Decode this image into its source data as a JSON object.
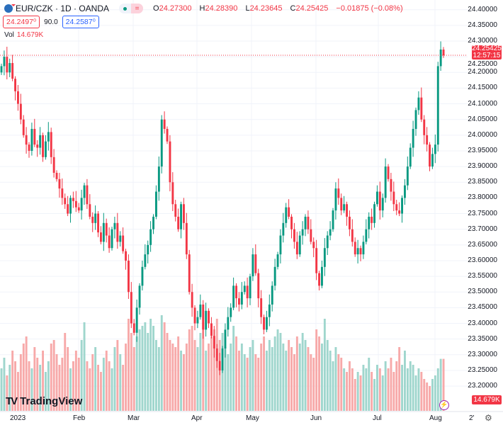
{
  "header": {
    "symbol": "EUR/CZK · 1D · OANDA",
    "open_label": "O",
    "open": "24.27300",
    "high_label": "H",
    "high": "24.28390",
    "low_label": "L",
    "low": "24.23645",
    "close_label": "C",
    "close": "24.25425",
    "change": "−0.01875 (−0.08%)",
    "pill_eq": "="
  },
  "quote": {
    "bid": "24.2497⁰",
    "spread": "90.0",
    "ask": "24.2587⁰"
  },
  "volume": {
    "label": "Vol",
    "value": "14.679K"
  },
  "price_tag": {
    "price": "24.25425",
    "countdown": "12:57:15"
  },
  "price_axis": [
    "24.40000",
    "24.35000",
    "24.30000",
    "24.25000",
    "24.20000",
    "24.15000",
    "24.10000",
    "24.05000",
    "24.00000",
    "23.95000",
    "23.90000",
    "23.85000",
    "23.80000",
    "23.75000",
    "23.70000",
    "23.65000",
    "23.60000",
    "23.55000",
    "23.50000",
    "23.45000",
    "23.40000",
    "23.35000",
    "23.30000",
    "23.25000",
    "23.20000"
  ],
  "time_axis": [
    "2023",
    "Feb",
    "Mar",
    "Apr",
    "May",
    "Jun",
    "Jul",
    "Aug",
    "2'"
  ],
  "brand": "TradingView",
  "colors": {
    "up": "#089981",
    "down": "#f23645",
    "up_vol": "#9fd6cd",
    "down_vol": "#f7a9a9"
  },
  "chart_data": {
    "type": "candlestick",
    "symbol": "EUR/CZK",
    "interval": "1D",
    "ylim": [
      23.18,
      24.42
    ],
    "closes": [
      24.22,
      24.25,
      24.2,
      24.23,
      24.18,
      24.14,
      24.1,
      24.05,
      24.0,
      23.97,
      23.95,
      24.02,
      23.97,
      23.96,
      24.0,
      23.93,
      23.98,
      24.01,
      23.93,
      23.88,
      23.86,
      23.83,
      23.8,
      23.78,
      23.75,
      23.8,
      23.79,
      23.77,
      23.76,
      23.8,
      23.84,
      23.78,
      23.74,
      23.72,
      23.75,
      23.69,
      23.66,
      23.72,
      23.68,
      23.64,
      23.7,
      23.72,
      23.66,
      23.68,
      23.63,
      23.6,
      23.5,
      23.4,
      23.37,
      23.45,
      23.52,
      23.58,
      23.62,
      23.65,
      23.7,
      23.74,
      23.82,
      23.9,
      24.05,
      24.02,
      23.98,
      23.85,
      23.78,
      23.74,
      23.7,
      23.78,
      23.72,
      23.62,
      23.5,
      23.45,
      23.4,
      23.42,
      23.46,
      23.38,
      23.44,
      23.4,
      23.36,
      23.32,
      23.28,
      23.25,
      23.32,
      23.38,
      23.42,
      23.45,
      23.52,
      23.48,
      23.46,
      23.5,
      23.52,
      23.48,
      23.55,
      23.62,
      23.56,
      23.48,
      23.42,
      23.38,
      23.42,
      23.46,
      23.52,
      23.58,
      23.62,
      23.68,
      23.72,
      23.77,
      23.74,
      23.7,
      23.66,
      23.62,
      23.68,
      23.7,
      23.74,
      23.7,
      23.66,
      23.64,
      23.56,
      23.52,
      23.58,
      23.64,
      23.68,
      23.7,
      23.76,
      23.83,
      23.8,
      23.76,
      23.78,
      23.74,
      23.7,
      23.66,
      23.62,
      23.64,
      23.62,
      23.66,
      23.7,
      23.74,
      23.72,
      23.78,
      23.82,
      23.76,
      23.8,
      23.9,
      23.86,
      23.82,
      23.78,
      23.76,
      23.75,
      23.8,
      23.84,
      23.9,
      23.96,
      24.02,
      24.08,
      24.12,
      24.05,
      24.0,
      23.97,
      23.9,
      23.94,
      23.97,
      24.22,
      24.273,
      24.25425
    ],
    "volumes_k": [
      12,
      15,
      10,
      13,
      17,
      14,
      11,
      16,
      19,
      21,
      14,
      12,
      18,
      15,
      13,
      17,
      11,
      14,
      19,
      20,
      16,
      13,
      15,
      22,
      18,
      12,
      14,
      17,
      15,
      20,
      25,
      14,
      12,
      16,
      18,
      13,
      11,
      15,
      17,
      14,
      12,
      18,
      20,
      16,
      13,
      19,
      26,
      22,
      18,
      21,
      23,
      24,
      25,
      22,
      26,
      24,
      20,
      18,
      27,
      25,
      22,
      20,
      19,
      18,
      21,
      17,
      16,
      19,
      23,
      24,
      20,
      18,
      22,
      25,
      17,
      19,
      21,
      23,
      26,
      20,
      22,
      18,
      16,
      19,
      24,
      21,
      17,
      19,
      16,
      15,
      18,
      20,
      16,
      15,
      19,
      21,
      17,
      20,
      18,
      21,
      23,
      22,
      19,
      17,
      20,
      18,
      16,
      21,
      19,
      22,
      20,
      18,
      16,
      15,
      23,
      21,
      19,
      26,
      20,
      17,
      14,
      18,
      16,
      15,
      12,
      11,
      14,
      12,
      9,
      11,
      10,
      13,
      12,
      15,
      11,
      9,
      13,
      12,
      10,
      14,
      12,
      15,
      11,
      14,
      18,
      13,
      17,
      12,
      14,
      13,
      10,
      12,
      11,
      9,
      8,
      7,
      9,
      10,
      12,
      14.679,
      14.679
    ]
  }
}
